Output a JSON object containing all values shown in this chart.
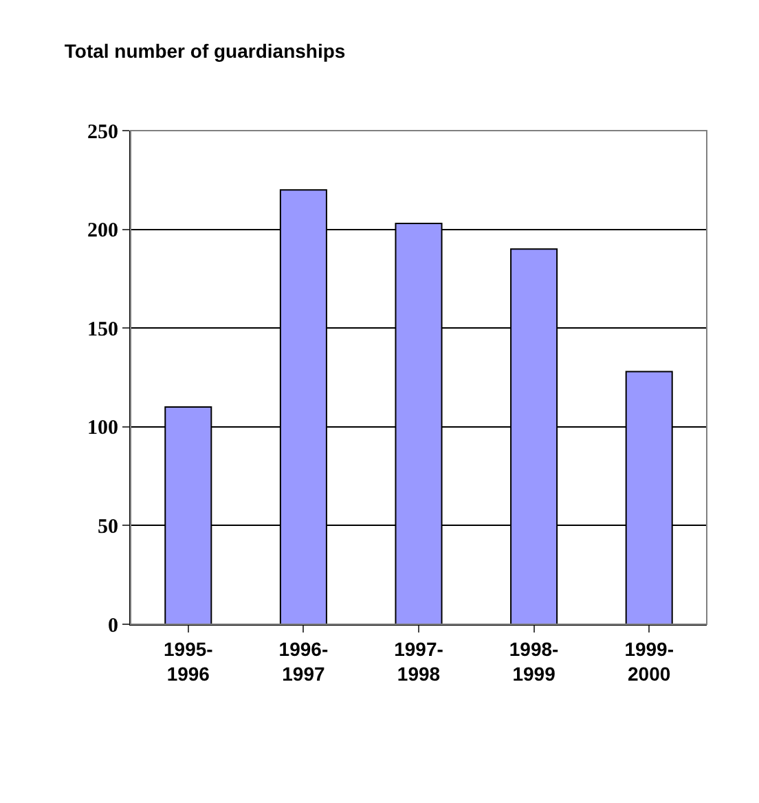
{
  "chart_data": {
    "type": "bar",
    "title": "Total number of guardianships",
    "categories": [
      "1995-1996",
      "1996-1997",
      "1997-1998",
      "1998-1999",
      "1999-2000"
    ],
    "values": [
      110,
      220,
      203,
      190,
      128
    ],
    "color": "#9999ff",
    "ylim": [
      0,
      250
    ],
    "yticks": [
      0,
      50,
      100,
      150,
      200,
      250
    ],
    "grid": "y",
    "legend": false
  }
}
